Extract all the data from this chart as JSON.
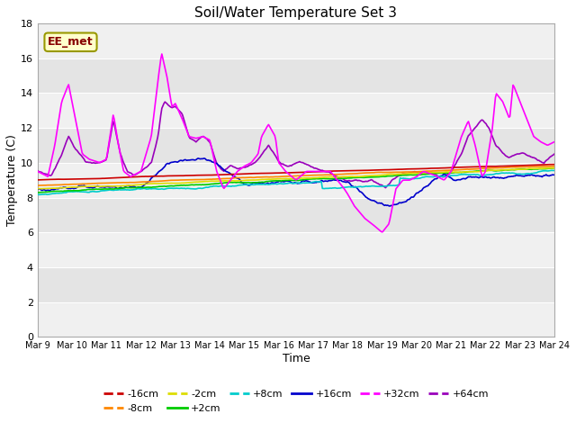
{
  "title": "Soil/Water Temperature Set 3",
  "xlabel": "Time",
  "ylabel": "Temperature (C)",
  "ylim": [
    0,
    18
  ],
  "yticks": [
    0,
    2,
    4,
    6,
    8,
    10,
    12,
    14,
    16,
    18
  ],
  "xtick_labels": [
    "Mar 9",
    "Mar 10",
    "Mar 11",
    "Mar 12",
    "Mar 13",
    "Mar 14",
    "Mar 15",
    "Mar 16",
    "Mar 17",
    "Mar 18",
    "Mar 19",
    "Mar 20",
    "Mar 21",
    "Mar 22",
    "Mar 23",
    "Mar 24"
  ],
  "watermark_text": "EE_met",
  "series_colors": {
    "-16cm": "#cc0000",
    "-8cm": "#ff8800",
    "-2cm": "#dddd00",
    "+2cm": "#00cc00",
    "+8cm": "#00cccc",
    "+16cm": "#0000cc",
    "+32cm": "#ff00ff",
    "+64cm": "#9900bb"
  },
  "band_colors": [
    "#f0f0f0",
    "#e0e0e0"
  ]
}
